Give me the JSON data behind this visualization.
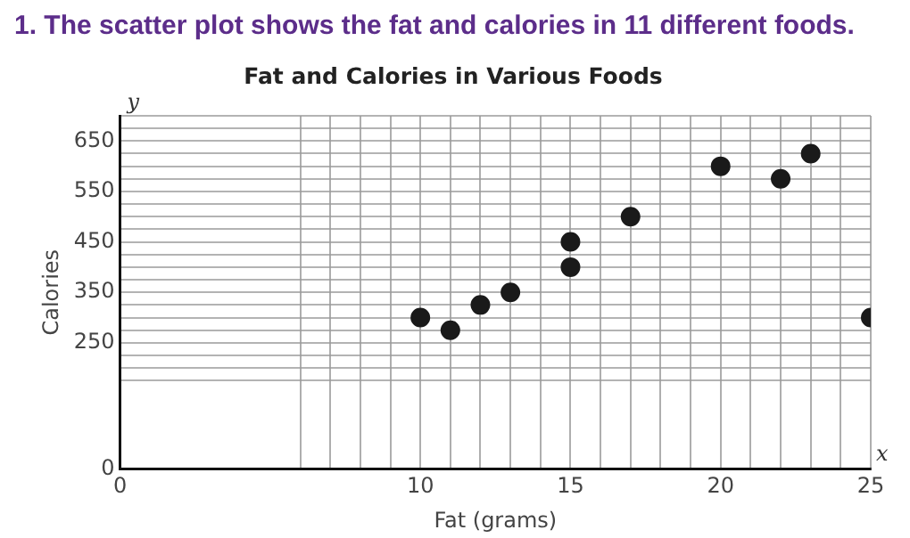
{
  "chart_data": {
    "type": "scatter",
    "title": "1. The scatter plot shows the fat and calories in 11 different foods.",
    "subtitle": "Fat and Calories in Various Foods",
    "xlabel": "Fat (grams)",
    "ylabel": "Calories",
    "annotations": [
      "y",
      "x"
    ],
    "x": [
      10,
      11,
      12,
      13,
      15,
      15,
      17,
      20,
      22,
      23,
      25
    ],
    "series": [
      {
        "color": "#1a1a1a",
        "values": [
          300,
          275,
          325,
          350,
          400,
          450,
          500,
          600,
          575,
          625,
          300
        ]
      }
    ],
    "xlim": [
      0,
      25
    ],
    "ylim": [
      0,
      700
    ],
    "xticks": [
      0,
      {
        "value": 6,
        "label": null
      },
      {
        "value": 7,
        "label": null
      },
      {
        "value": 8,
        "label": null
      },
      {
        "value": 9,
        "label": null
      },
      10,
      {
        "value": 11,
        "label": null
      },
      {
        "value": 12,
        "label": null
      },
      {
        "value": 13,
        "label": null
      },
      {
        "value": 14,
        "label": null
      },
      15,
      {
        "value": 16,
        "label": null
      },
      {
        "value": 17,
        "label": null
      },
      {
        "value": 18,
        "label": null
      },
      {
        "value": 19,
        "label": null
      },
      20,
      {
        "value": 21,
        "label": null
      },
      {
        "value": 22,
        "label": null
      },
      {
        "value": 23,
        "label": null
      },
      {
        "value": 24,
        "label": null
      },
      25
    ],
    "yticks": [
      0,
      {
        "value": 175,
        "label": null
      },
      {
        "value": 200,
        "label": null
      },
      {
        "value": 225,
        "label": null
      },
      250,
      {
        "value": 275,
        "label": null
      },
      {
        "value": 300,
        "label": null
      },
      {
        "value": 325,
        "label": null
      },
      350,
      {
        "value": 375,
        "label": null
      },
      {
        "value": 400,
        "label": null
      },
      {
        "value": 425,
        "label": null
      },
      450,
      {
        "value": 475,
        "label": null
      },
      {
        "value": 500,
        "label": null
      },
      {
        "value": 525,
        "label": null
      },
      550,
      {
        "value": 575,
        "label": null
      },
      {
        "value": 600,
        "label": null
      },
      {
        "value": 625,
        "label": null
      },
      650,
      {
        "value": 675,
        "label": null
      },
      {
        "value": 700,
        "label": null
      }
    ],
    "grid": true,
    "legend": false,
    "marker": "circle"
  }
}
